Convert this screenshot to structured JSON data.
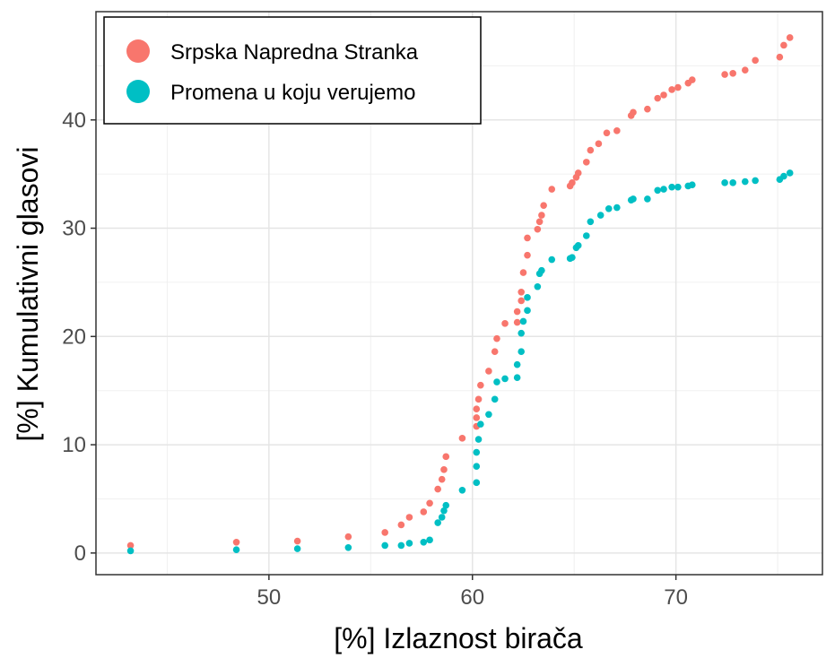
{
  "chart_data": {
    "type": "scatter",
    "xlabel": "[%] Izlaznost birača",
    "ylabel": "[%] Kumulativni glasovi",
    "xlim": [
      41.5,
      77.2
    ],
    "ylim": [
      -2.0,
      50.0
    ],
    "x_ticks": [
      50,
      60,
      70
    ],
    "y_ticks": [
      0,
      10,
      20,
      30,
      40
    ],
    "x_tick_labels": [
      "50",
      "60",
      "70"
    ],
    "y_tick_labels": [
      "0",
      "10",
      "20",
      "30",
      "40"
    ],
    "grid": true,
    "legend_position": "top-left",
    "series": [
      {
        "name": "Srpska Napredna Stranka",
        "color": "#F8766D",
        "points": [
          [
            43.2,
            0.7
          ],
          [
            48.4,
            1.0
          ],
          [
            51.4,
            1.1
          ],
          [
            53.9,
            1.5
          ],
          [
            55.7,
            1.9
          ],
          [
            56.5,
            2.6
          ],
          [
            56.9,
            3.3
          ],
          [
            57.6,
            3.8
          ],
          [
            57.9,
            4.6
          ],
          [
            58.3,
            5.9
          ],
          [
            58.5,
            6.8
          ],
          [
            58.6,
            7.7
          ],
          [
            58.7,
            8.9
          ],
          [
            59.5,
            10.6
          ],
          [
            60.2,
            11.7
          ],
          [
            60.2,
            12.5
          ],
          [
            60.2,
            13.3
          ],
          [
            60.3,
            14.2
          ],
          [
            60.4,
            15.5
          ],
          [
            60.8,
            16.8
          ],
          [
            61.1,
            18.6
          ],
          [
            61.2,
            19.8
          ],
          [
            61.6,
            21.2
          ],
          [
            62.2,
            21.3
          ],
          [
            62.2,
            22.3
          ],
          [
            62.4,
            23.3
          ],
          [
            62.4,
            24.1
          ],
          [
            62.5,
            25.9
          ],
          [
            62.7,
            27.5
          ],
          [
            62.7,
            29.1
          ],
          [
            63.2,
            29.9
          ],
          [
            63.3,
            30.6
          ],
          [
            63.4,
            31.2
          ],
          [
            63.5,
            32.1
          ],
          [
            63.9,
            33.6
          ],
          [
            64.8,
            33.9
          ],
          [
            64.9,
            34.2
          ],
          [
            65.1,
            34.7
          ],
          [
            65.2,
            35.1
          ],
          [
            65.6,
            36.1
          ],
          [
            65.8,
            37.2
          ],
          [
            66.2,
            37.8
          ],
          [
            66.6,
            38.8
          ],
          [
            67.1,
            39.0
          ],
          [
            67.8,
            40.4
          ],
          [
            67.9,
            40.7
          ],
          [
            68.6,
            41.0
          ],
          [
            69.1,
            42.0
          ],
          [
            69.4,
            42.3
          ],
          [
            69.8,
            42.8
          ],
          [
            70.1,
            43.0
          ],
          [
            70.6,
            43.4
          ],
          [
            70.8,
            43.7
          ],
          [
            72.4,
            44.2
          ],
          [
            72.8,
            44.3
          ],
          [
            73.4,
            44.6
          ],
          [
            73.9,
            45.5
          ],
          [
            75.1,
            45.8
          ],
          [
            75.3,
            46.9
          ],
          [
            75.6,
            47.6
          ]
        ]
      },
      {
        "name": "Promena u koju verujemo",
        "color": "#00BFC4",
        "points": [
          [
            43.2,
            0.2
          ],
          [
            48.4,
            0.3
          ],
          [
            51.4,
            0.4
          ],
          [
            53.9,
            0.5
          ],
          [
            55.7,
            0.7
          ],
          [
            56.5,
            0.7
          ],
          [
            56.9,
            0.9
          ],
          [
            57.6,
            1.0
          ],
          [
            57.9,
            1.2
          ],
          [
            58.3,
            2.8
          ],
          [
            58.5,
            3.3
          ],
          [
            58.6,
            3.9
          ],
          [
            58.7,
            4.4
          ],
          [
            59.5,
            5.8
          ],
          [
            60.2,
            6.5
          ],
          [
            60.2,
            8.0
          ],
          [
            60.2,
            9.3
          ],
          [
            60.3,
            10.5
          ],
          [
            60.4,
            11.9
          ],
          [
            60.8,
            12.8
          ],
          [
            61.1,
            14.2
          ],
          [
            61.2,
            15.8
          ],
          [
            61.6,
            16.1
          ],
          [
            62.2,
            16.2
          ],
          [
            62.2,
            17.4
          ],
          [
            62.4,
            18.6
          ],
          [
            62.4,
            20.3
          ],
          [
            62.5,
            21.4
          ],
          [
            62.7,
            22.4
          ],
          [
            62.7,
            23.6
          ],
          [
            63.2,
            24.6
          ],
          [
            63.3,
            25.8
          ],
          [
            63.4,
            26.1
          ],
          [
            63.9,
            27.1
          ],
          [
            64.8,
            27.2
          ],
          [
            64.9,
            27.3
          ],
          [
            65.1,
            28.2
          ],
          [
            65.2,
            28.4
          ],
          [
            65.6,
            29.3
          ],
          [
            65.8,
            30.6
          ],
          [
            66.3,
            31.2
          ],
          [
            66.7,
            31.8
          ],
          [
            67.1,
            31.9
          ],
          [
            67.8,
            32.6
          ],
          [
            67.9,
            32.7
          ],
          [
            68.6,
            32.7
          ],
          [
            69.1,
            33.5
          ],
          [
            69.4,
            33.6
          ],
          [
            69.8,
            33.8
          ],
          [
            70.1,
            33.8
          ],
          [
            70.6,
            33.9
          ],
          [
            70.8,
            34.0
          ],
          [
            72.4,
            34.2
          ],
          [
            72.8,
            34.2
          ],
          [
            73.4,
            34.3
          ],
          [
            73.9,
            34.4
          ],
          [
            75.1,
            34.5
          ],
          [
            75.3,
            34.8
          ],
          [
            75.6,
            35.1
          ]
        ]
      }
    ]
  }
}
